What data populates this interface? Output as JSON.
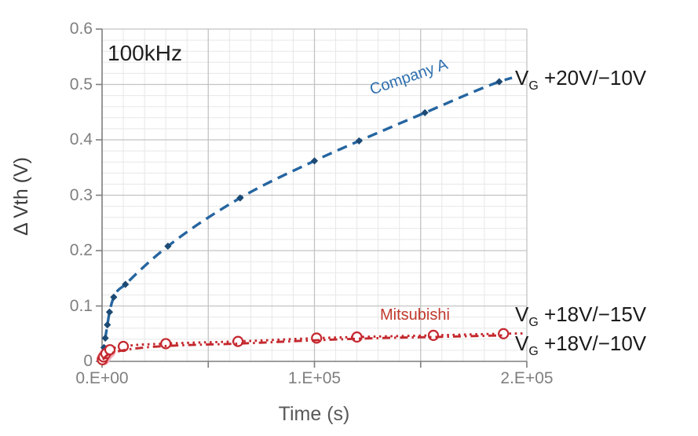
{
  "figure": {
    "frequency_label": "100kHz",
    "x_axis_title": "Time (s)",
    "y_axis_title": "Δ Vth (V)",
    "annotations": {
      "company_a": "Company A",
      "mitsubishi": "Mitsubishi",
      "vg_top": {
        "v": "V",
        "sub": "G",
        "rest": " +20V/−10V"
      },
      "vg_mid": {
        "v": "V",
        "sub": "G",
        "rest": " +18V/−15V"
      },
      "vg_bot": {
        "v": "V",
        "sub": "G",
        "rest": " +18V/−10V"
      }
    },
    "colors": {
      "company_a_line": "#2565a0",
      "company_a_marker": "#1c4a74",
      "mitsubishi_line": "#c4282e",
      "origin_overlap": "#f3aebb",
      "grid_minor": "#e7e7e7",
      "grid_major": "#c3c3c3",
      "axis": "#7f7f7f"
    }
  },
  "chart_data": {
    "type": "line",
    "title": "",
    "xlabel": "Time (s)",
    "ylabel": "Δ Vth (V)",
    "xlim": [
      0,
      200000
    ],
    "ylim": [
      0,
      0.6
    ],
    "x_major_step": 50000,
    "x_minor_step": 10000,
    "y_major_step": 0.1,
    "y_minor_step": 0.02,
    "x_tick_values": [
      0,
      100000,
      200000
    ],
    "x_tick_labels": [
      "0.E+00",
      "1.E+05",
      "2.E+05"
    ],
    "y_tick_values": [
      0,
      0.1,
      0.2,
      0.3,
      0.4,
      0.5,
      0.6
    ],
    "y_tick_labels": [
      "0",
      "0.1",
      "0.2",
      "0.3",
      "0.4",
      "0.5",
      "0.6"
    ],
    "legend_position": "inline-annotations",
    "grid": "on",
    "series": [
      {
        "name": "Company A",
        "condition": "VG +20V/−10V",
        "color": "#2565a0",
        "marker_color": "#1c4a74",
        "line_style": "dashed",
        "marker": "diamond",
        "points": [
          [
            400,
            0.01
          ],
          [
            900,
            0.025
          ],
          [
            1500,
            0.042
          ],
          [
            2500,
            0.066
          ],
          [
            3500,
            0.089
          ],
          [
            5500,
            0.116
          ],
          [
            11000,
            0.139
          ],
          [
            31000,
            0.208
          ],
          [
            65000,
            0.295
          ],
          [
            100000,
            0.362
          ],
          [
            121000,
            0.398
          ],
          [
            152000,
            0.449
          ],
          [
            187000,
            0.505
          ],
          [
            193000,
            0.512,
            0
          ]
        ]
      },
      {
        "name": "Mitsubishi",
        "condition": "VG +18V/−15V",
        "color": "#c4282e",
        "marker_color": "#c4282e",
        "line_style": "dotted",
        "marker": "circle",
        "points": [
          [
            150,
            0.003
          ],
          [
            700,
            0.008
          ],
          [
            1800,
            0.014
          ],
          [
            3700,
            0.021
          ],
          [
            10000,
            0.027
          ],
          [
            30000,
            0.032
          ],
          [
            64000,
            0.036
          ],
          [
            101000,
            0.042
          ],
          [
            120000,
            0.044
          ],
          [
            156000,
            0.047
          ],
          [
            189000,
            0.05
          ],
          [
            198000,
            0.0505,
            0
          ]
        ]
      },
      {
        "name": "Mitsubishi",
        "condition": "VG +18V/−10V",
        "color": "#c4282e",
        "marker_color": "#c4282e",
        "line_style": "dashdot",
        "marker": "none",
        "points": [
          [
            400,
            0.003
          ],
          [
            2000,
            0.01
          ],
          [
            7500,
            0.018
          ],
          [
            20000,
            0.025
          ],
          [
            31000,
            0.028
          ],
          [
            64000,
            0.032
          ],
          [
            100000,
            0.038
          ],
          [
            130000,
            0.042
          ],
          [
            156000,
            0.044
          ],
          [
            189000,
            0.047
          ]
        ]
      }
    ],
    "origin_overlap_markers": {
      "color": "#f3aebb",
      "points": [
        [
          600,
          0.005
        ],
        [
          1600,
          0.011
        ],
        [
          3200,
          0.018
        ]
      ]
    }
  }
}
